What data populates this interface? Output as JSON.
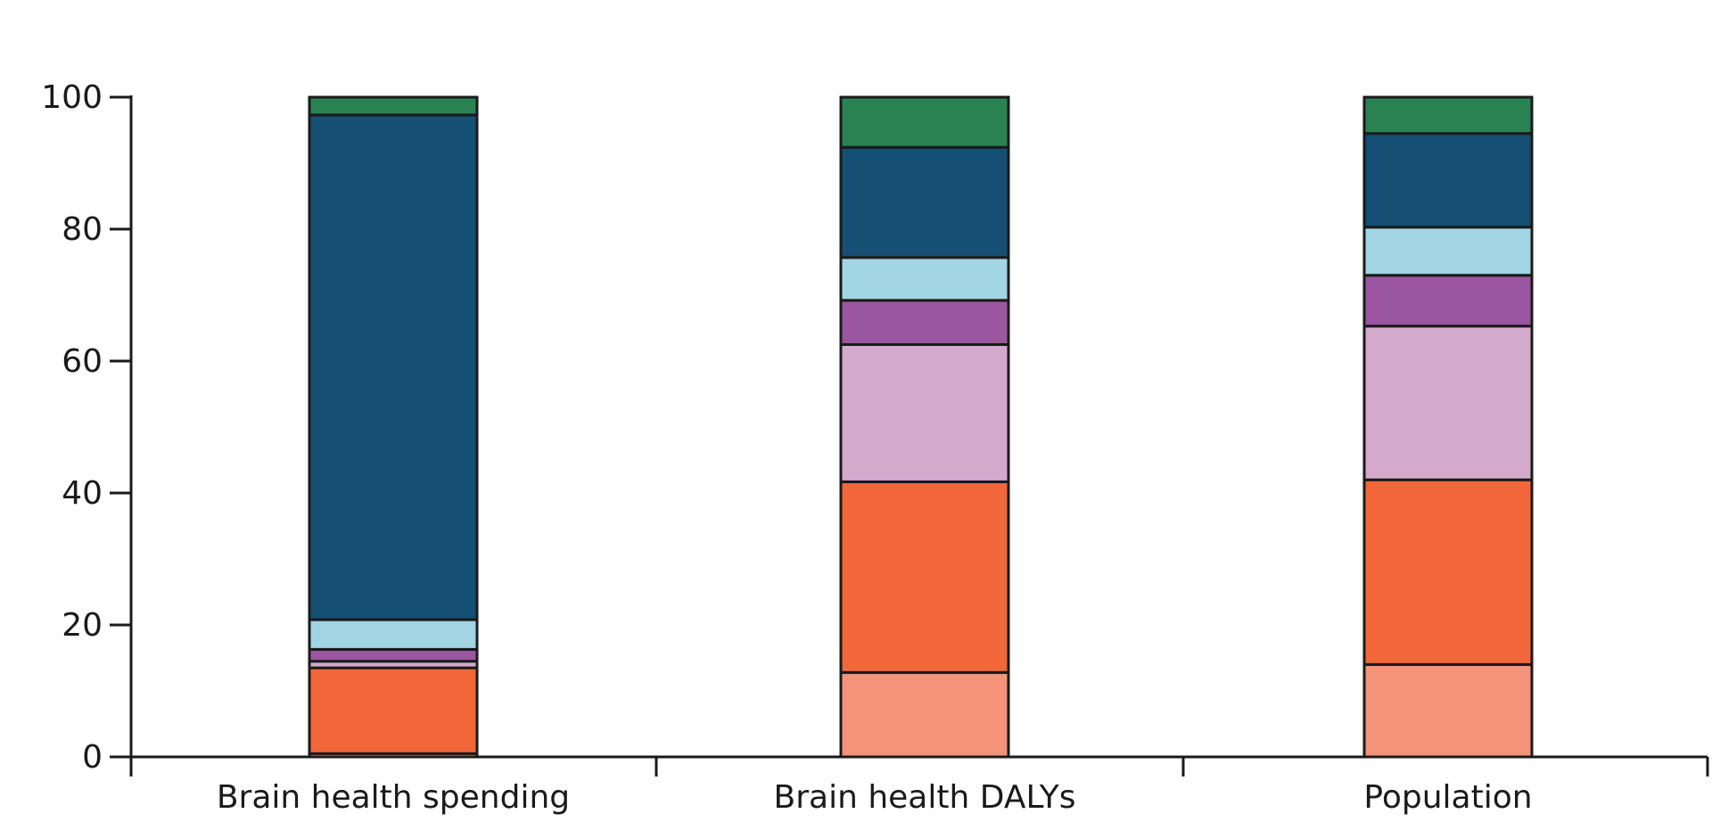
{
  "chart_data": {
    "type": "bar",
    "stacked": true,
    "title": "",
    "xlabel": "",
    "ylabel": "",
    "ylim": [
      0,
      100
    ],
    "yticks": [
      0,
      20,
      40,
      60,
      80,
      100
    ],
    "ytick_labels": [
      "0",
      "20",
      "40",
      "60",
      "80",
      "100"
    ],
    "grid": false,
    "legend": "none",
    "categories": [
      "Brain health spending",
      "Brain health DALYs",
      "Population"
    ],
    "series": [
      {
        "color": "#f4937a",
        "values": [
          0.5,
          12.8,
          14.0
        ]
      },
      {
        "color": "#f26739",
        "values": [
          13.0,
          28.9,
          28.0
        ]
      },
      {
        "color": "#d3a9cc",
        "values": [
          1.0,
          20.8,
          23.3
        ]
      },
      {
        "color": "#9b56a1",
        "values": [
          1.8,
          6.7,
          7.7
        ]
      },
      {
        "color": "#a1d5e3",
        "values": [
          4.5,
          6.5,
          7.3
        ]
      },
      {
        "color": "#154f74",
        "values": [
          76.5,
          16.7,
          14.2
        ]
      },
      {
        "color": "#2a8152",
        "values": [
          2.7,
          7.6,
          5.5
        ]
      }
    ]
  }
}
